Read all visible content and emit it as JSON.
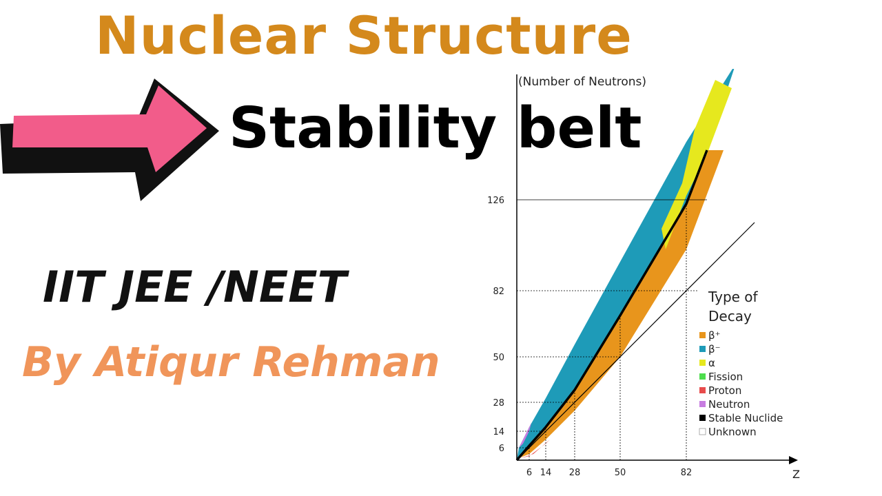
{
  "title": "Nuclear Structure",
  "subtitle": "Stability belt",
  "exam": "IIT JEE /NEET",
  "author": "By Atiqur Rehman",
  "colors": {
    "title": "#D4891C",
    "author": "#F0955A",
    "arrow_fill": "#F25C8A",
    "arrow_shadow": "#111111"
  },
  "icons": {
    "arrow": "right-arrow-icon"
  },
  "chart_data": {
    "type": "heatmap",
    "ylabel": "(Number of Neutrons)",
    "xlabel": "Z",
    "xticks": [
      6,
      14,
      28,
      50,
      82
    ],
    "yticks": [
      6,
      14,
      28,
      50,
      82,
      126
    ],
    "xlim": [
      0,
      120
    ],
    "ylim": [
      0,
      180
    ],
    "legend": {
      "title_line1": "Type of",
      "title_line2": "Decay",
      "position": "right",
      "entries": [
        {
          "key": "beta_plus",
          "label": "β⁺",
          "color": "#E8951C"
        },
        {
          "key": "beta_minus",
          "label": "β⁻",
          "color": "#1E9BB8"
        },
        {
          "key": "alpha",
          "label": "α",
          "color": "#E6E81E"
        },
        {
          "key": "fission",
          "label": "Fission",
          "color": "#4DDD4D"
        },
        {
          "key": "proton",
          "label": "Proton",
          "color": "#E84C4C"
        },
        {
          "key": "neutron",
          "label": "Neutron",
          "color": "#C77CE0"
        },
        {
          "key": "stable",
          "label": "Stable Nuclide",
          "color": "#000000"
        },
        {
          "key": "unknown",
          "label": "Unknown",
          "color": "#FFFFFF"
        }
      ]
    },
    "stability_line": [
      [
        0,
        0
      ],
      [
        6,
        7
      ],
      [
        14,
        16
      ],
      [
        28,
        34
      ],
      [
        50,
        70
      ],
      [
        82,
        124
      ],
      [
        92,
        150
      ]
    ],
    "band_upper": [
      [
        1,
        6
      ],
      [
        6,
        16
      ],
      [
        14,
        30
      ],
      [
        28,
        56
      ],
      [
        50,
        96
      ],
      [
        82,
        154
      ],
      [
        106,
        192
      ]
    ],
    "band_lower": [
      [
        1,
        1
      ],
      [
        6,
        3
      ],
      [
        14,
        10
      ],
      [
        28,
        24
      ],
      [
        50,
        50
      ],
      [
        82,
        102
      ],
      [
        100,
        150
      ]
    ],
    "alpha_region": [
      [
        72,
        102
      ],
      [
        82,
        128
      ],
      [
        92,
        148
      ],
      [
        104,
        180
      ],
      [
        96,
        184
      ],
      [
        86,
        160
      ],
      [
        80,
        134
      ],
      [
        70,
        112
      ]
    ],
    "reference_line_N_equals_Z": [
      [
        0,
        0
      ],
      [
        115,
        115
      ]
    ]
  }
}
